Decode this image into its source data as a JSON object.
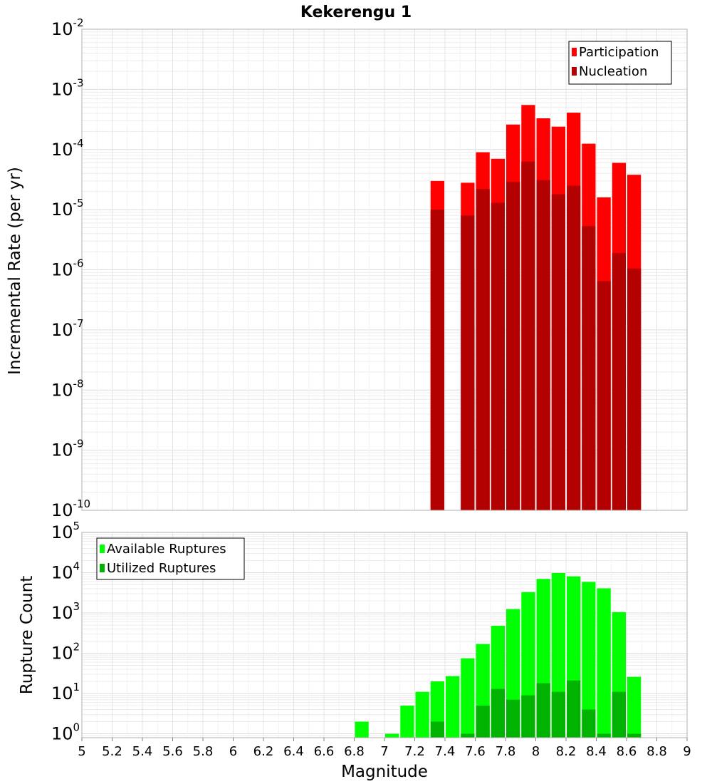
{
  "title": "Kekerengu 1",
  "xlabel": "Magnitude",
  "chart_data": [
    {
      "type": "bar",
      "panel": "top",
      "title": "Kekerengu 1",
      "xlabel": "Magnitude",
      "ylabel": "Incremental Rate (per yr)",
      "yscale": "log",
      "ylim": [
        1e-10,
        0.01
      ],
      "xlim": [
        5,
        9
      ],
      "grid": true,
      "legend_position": "top-right",
      "bar_width": 0.1,
      "y_tick_labels": [
        {
          "base": "10",
          "exp": "-10",
          "value": 1e-10
        },
        {
          "base": "10",
          "exp": "-9",
          "value": 1e-09
        },
        {
          "base": "10",
          "exp": "-8",
          "value": 1e-08
        },
        {
          "base": "10",
          "exp": "-7",
          "value": 1e-07
        },
        {
          "base": "10",
          "exp": "-6",
          "value": 1e-06
        },
        {
          "base": "10",
          "exp": "-5",
          "value": 1e-05
        },
        {
          "base": "10",
          "exp": "-4",
          "value": 0.0001
        },
        {
          "base": "10",
          "exp": "-3",
          "value": 0.001
        },
        {
          "base": "10",
          "exp": "-2",
          "value": 0.01
        }
      ],
      "series": [
        {
          "name": "Participation",
          "color": "#ff0000",
          "points": [
            {
              "x": 7.35,
              "y": 3e-05
            },
            {
              "x": 7.55,
              "y": 2.8e-05
            },
            {
              "x": 7.65,
              "y": 9e-05
            },
            {
              "x": 7.75,
              "y": 7e-05
            },
            {
              "x": 7.85,
              "y": 0.00026
            },
            {
              "x": 7.95,
              "y": 0.00055
            },
            {
              "x": 8.05,
              "y": 0.00033
            },
            {
              "x": 8.15,
              "y": 0.00024
            },
            {
              "x": 8.25,
              "y": 0.00041
            },
            {
              "x": 8.35,
              "y": 0.000125
            },
            {
              "x": 8.45,
              "y": 1.6e-05
            },
            {
              "x": 8.55,
              "y": 6e-05
            },
            {
              "x": 8.65,
              "y": 3.8e-05
            }
          ]
        },
        {
          "name": "Nucleation",
          "color": "#b30000",
          "points": [
            {
              "x": 7.35,
              "y": 1e-05
            },
            {
              "x": 7.55,
              "y": 8e-06
            },
            {
              "x": 7.65,
              "y": 2.2e-05
            },
            {
              "x": 7.75,
              "y": 1.3e-05
            },
            {
              "x": 7.85,
              "y": 2.9e-05
            },
            {
              "x": 7.95,
              "y": 6.3e-05
            },
            {
              "x": 8.05,
              "y": 3.1e-05
            },
            {
              "x": 8.15,
              "y": 1.8e-05
            },
            {
              "x": 8.25,
              "y": 2.5e-05
            },
            {
              "x": 8.35,
              "y": 5.3e-06
            },
            {
              "x": 8.45,
              "y": 6.5e-07
            },
            {
              "x": 8.55,
              "y": 1.9e-06
            },
            {
              "x": 8.65,
              "y": 1.05e-06
            }
          ]
        }
      ]
    },
    {
      "type": "bar",
      "panel": "bottom",
      "xlabel": "Magnitude",
      "ylabel": "Rupture Count",
      "yscale": "log",
      "ylim": [
        0.8,
        100000.0
      ],
      "xlim": [
        5,
        9
      ],
      "grid": true,
      "legend_position": "top-left",
      "bar_width": 0.1,
      "y_tick_labels": [
        {
          "base": "10",
          "exp": "0",
          "value": 1
        },
        {
          "base": "10",
          "exp": "1",
          "value": 10
        },
        {
          "base": "10",
          "exp": "2",
          "value": 100
        },
        {
          "base": "10",
          "exp": "3",
          "value": 1000
        },
        {
          "base": "10",
          "exp": "4",
          "value": 10000
        },
        {
          "base": "10",
          "exp": "5",
          "value": 100000
        }
      ],
      "x_ticks": [
        "5",
        "5.2",
        "5.4",
        "5.6",
        "5.8",
        "6",
        "6.2",
        "6.4",
        "6.6",
        "6.8",
        "7",
        "7.2",
        "7.4",
        "7.6",
        "7.8",
        "8",
        "8.2",
        "8.4",
        "8.6",
        "8.8",
        "9"
      ],
      "series": [
        {
          "name": "Available Ruptures",
          "color": "#00ff00",
          "points": [
            {
              "x": 6.85,
              "y": 2
            },
            {
              "x": 7.05,
              "y": 1
            },
            {
              "x": 7.15,
              "y": 5
            },
            {
              "x": 7.25,
              "y": 11
            },
            {
              "x": 7.35,
              "y": 20
            },
            {
              "x": 7.45,
              "y": 27
            },
            {
              "x": 7.55,
              "y": 75
            },
            {
              "x": 7.65,
              "y": 170
            },
            {
              "x": 7.75,
              "y": 480
            },
            {
              "x": 7.85,
              "y": 1250
            },
            {
              "x": 7.95,
              "y": 3300
            },
            {
              "x": 8.05,
              "y": 7000
            },
            {
              "x": 8.15,
              "y": 9800
            },
            {
              "x": 8.25,
              "y": 8100
            },
            {
              "x": 8.35,
              "y": 5900
            },
            {
              "x": 8.45,
              "y": 4100
            },
            {
              "x": 8.55,
              "y": 1050
            },
            {
              "x": 8.65,
              "y": 26
            }
          ]
        },
        {
          "name": "Utilized Ruptures",
          "color": "#00b300",
          "points": [
            {
              "x": 7.35,
              "y": 2
            },
            {
              "x": 7.55,
              "y": 1
            },
            {
              "x": 7.65,
              "y": 5
            },
            {
              "x": 7.75,
              "y": 13
            },
            {
              "x": 7.85,
              "y": 7
            },
            {
              "x": 7.95,
              "y": 9
            },
            {
              "x": 8.05,
              "y": 18
            },
            {
              "x": 8.15,
              "y": 11
            },
            {
              "x": 8.25,
              "y": 21
            },
            {
              "x": 8.35,
              "y": 4
            },
            {
              "x": 8.45,
              "y": 1
            },
            {
              "x": 8.55,
              "y": 11
            },
            {
              "x": 8.65,
              "y": 1
            }
          ]
        }
      ]
    }
  ]
}
